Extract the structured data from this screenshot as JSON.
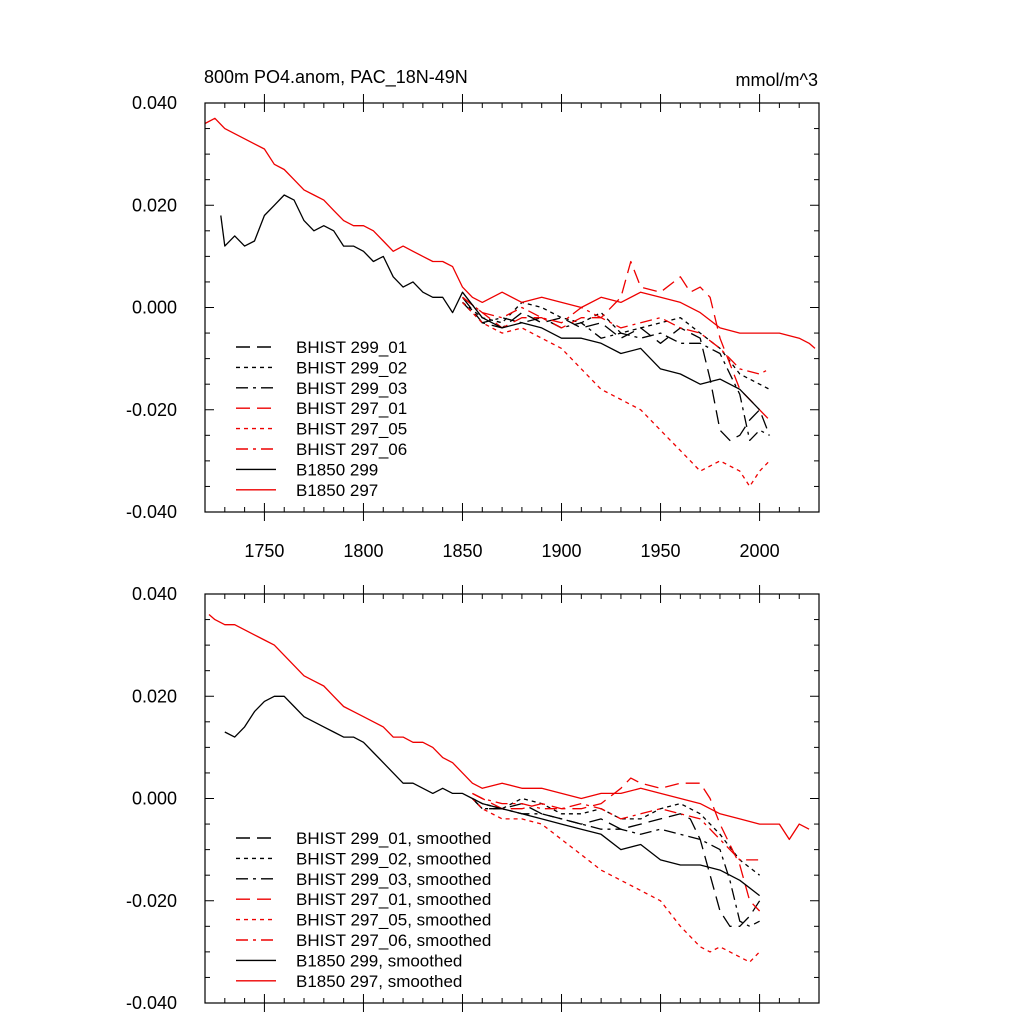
{
  "chart_data": [
    {
      "type": "line",
      "title": "800m PO4.anom, PAC_18N-49N",
      "units": "mmol/m^3",
      "xlim": [
        1720,
        2030
      ],
      "ylim": [
        -0.04,
        0.04
      ],
      "x_ticks": [
        1750,
        1800,
        1850,
        1900,
        1950,
        2000
      ],
      "y_ticks": [
        -0.04,
        -0.02,
        0.0,
        0.02,
        0.04
      ],
      "x_tick_labels": [
        "1750",
        "1800",
        "1850",
        "1900",
        "1950",
        "2000"
      ],
      "y_tick_labels": [
        "-0.040",
        "-0.020",
        "0.000",
        "0.020",
        "0.040"
      ],
      "legend_position": "bottom-left",
      "series": [
        {
          "name": "BHIST 299_01",
          "color": "#000000",
          "dash": "long-dash",
          "x": [
            1850,
            1860,
            1870,
            1880,
            1890,
            1900,
            1910,
            1920,
            1930,
            1940,
            1950,
            1960,
            1970,
            1975,
            1980,
            1985,
            1990,
            1995,
            2000,
            2005
          ],
          "y": [
            0.002,
            -0.003,
            -0.004,
            -0.001,
            -0.003,
            -0.002,
            -0.004,
            -0.003,
            -0.006,
            -0.004,
            -0.007,
            -0.004,
            -0.006,
            -0.014,
            -0.024,
            -0.026,
            -0.025,
            -0.022,
            -0.02,
            -0.025
          ]
        },
        {
          "name": "BHIST 299_02",
          "color": "#000000",
          "dash": "short-dash",
          "x": [
            1850,
            1860,
            1870,
            1880,
            1890,
            1900,
            1910,
            1920,
            1930,
            1940,
            1950,
            1960,
            1970,
            1980,
            1990,
            2000,
            2005
          ],
          "y": [
            0.001,
            -0.002,
            -0.003,
            0.001,
            0.0,
            -0.002,
            -0.003,
            -0.001,
            -0.005,
            -0.004,
            -0.003,
            -0.002,
            -0.005,
            -0.008,
            -0.013,
            -0.015,
            -0.016
          ]
        },
        {
          "name": "BHIST 299_03",
          "color": "#000000",
          "dash": "dash-dot",
          "x": [
            1850,
            1860,
            1870,
            1880,
            1890,
            1900,
            1910,
            1920,
            1930,
            1940,
            1950,
            1960,
            1970,
            1980,
            1990,
            1995,
            2000,
            2005
          ],
          "y": [
            0.001,
            -0.003,
            -0.002,
            -0.003,
            -0.002,
            -0.004,
            -0.003,
            -0.006,
            -0.005,
            -0.006,
            -0.005,
            -0.007,
            -0.007,
            -0.009,
            -0.017,
            -0.026,
            -0.024,
            -0.025
          ]
        },
        {
          "name": "BHIST 297_01",
          "color": "#ee0000",
          "dash": "long-dash",
          "x": [
            1850,
            1860,
            1870,
            1880,
            1890,
            1900,
            1910,
            1920,
            1930,
            1935,
            1940,
            1950,
            1960,
            1965,
            1970,
            1975,
            1980,
            1990,
            2000,
            2005
          ],
          "y": [
            0.002,
            -0.001,
            -0.004,
            -0.002,
            -0.002,
            -0.004,
            -0.002,
            -0.002,
            0.002,
            0.009,
            0.004,
            0.003,
            0.006,
            0.003,
            0.004,
            0.002,
            -0.006,
            -0.016,
            -0.02,
            -0.022
          ]
        },
        {
          "name": "BHIST 297_05",
          "color": "#ee0000",
          "dash": "short-dash",
          "x": [
            1850,
            1860,
            1870,
            1880,
            1890,
            1900,
            1910,
            1920,
            1930,
            1940,
            1950,
            1960,
            1970,
            1980,
            1990,
            1995,
            2000,
            2005
          ],
          "y": [
            0.001,
            -0.003,
            -0.005,
            -0.004,
            -0.006,
            -0.008,
            -0.012,
            -0.016,
            -0.018,
            -0.02,
            -0.024,
            -0.028,
            -0.032,
            -0.03,
            -0.032,
            -0.035,
            -0.032,
            -0.03
          ]
        },
        {
          "name": "BHIST 297_06",
          "color": "#ee0000",
          "dash": "dash-dot",
          "x": [
            1850,
            1860,
            1870,
            1880,
            1890,
            1900,
            1910,
            1920,
            1930,
            1940,
            1950,
            1960,
            1970,
            1980,
            1990,
            2000,
            2005
          ],
          "y": [
            0.002,
            -0.001,
            -0.002,
            0.0,
            -0.002,
            -0.003,
            0.0,
            -0.002,
            -0.004,
            -0.003,
            -0.002,
            -0.004,
            -0.005,
            -0.008,
            -0.012,
            -0.013,
            -0.012
          ]
        },
        {
          "name": "B1850 299",
          "color": "#000000",
          "dash": "solid",
          "x": [
            1728,
            1730,
            1735,
            1740,
            1745,
            1750,
            1755,
            1760,
            1765,
            1770,
            1775,
            1780,
            1785,
            1790,
            1795,
            1800,
            1805,
            1810,
            1815,
            1820,
            1825,
            1830,
            1835,
            1840,
            1845,
            1850,
            1860,
            1870,
            1880,
            1890,
            1900,
            1910,
            1920,
            1930,
            1940,
            1950,
            1960,
            1970,
            1980,
            1990,
            2000
          ],
          "y": [
            0.018,
            0.012,
            0.014,
            0.012,
            0.013,
            0.018,
            0.02,
            0.022,
            0.021,
            0.017,
            0.015,
            0.016,
            0.015,
            0.012,
            0.012,
            0.011,
            0.009,
            0.01,
            0.006,
            0.004,
            0.005,
            0.003,
            0.002,
            0.002,
            -0.001,
            0.003,
            -0.002,
            -0.004,
            -0.003,
            -0.004,
            -0.006,
            -0.006,
            -0.007,
            -0.009,
            -0.008,
            -0.012,
            -0.013,
            -0.015,
            -0.014,
            -0.016,
            -0.02
          ]
        },
        {
          "name": "B1850 297",
          "color": "#ee0000",
          "dash": "solid",
          "x": [
            1720,
            1725,
            1730,
            1735,
            1740,
            1745,
            1750,
            1755,
            1760,
            1765,
            1770,
            1775,
            1780,
            1785,
            1790,
            1795,
            1800,
            1805,
            1810,
            1815,
            1820,
            1825,
            1830,
            1835,
            1840,
            1845,
            1850,
            1855,
            1860,
            1870,
            1880,
            1890,
            1900,
            1910,
            1920,
            1930,
            1940,
            1950,
            1960,
            1970,
            1980,
            1990,
            2000,
            2010,
            2020,
            2025,
            2028
          ],
          "y": [
            0.036,
            0.037,
            0.035,
            0.034,
            0.033,
            0.032,
            0.031,
            0.028,
            0.027,
            0.025,
            0.023,
            0.022,
            0.021,
            0.019,
            0.017,
            0.016,
            0.016,
            0.015,
            0.013,
            0.011,
            0.012,
            0.011,
            0.01,
            0.009,
            0.009,
            0.008,
            0.004,
            0.002,
            0.001,
            0.003,
            0.001,
            0.002,
            0.001,
            0.0,
            0.002,
            0.001,
            0.003,
            0.002,
            0.001,
            -0.001,
            -0.004,
            -0.005,
            -0.005,
            -0.005,
            -0.006,
            -0.007,
            -0.008
          ]
        }
      ]
    },
    {
      "type": "line",
      "xlim": [
        1720,
        2030
      ],
      "ylim": [
        -0.04,
        0.04
      ],
      "x_ticks": [
        1750,
        1800,
        1850,
        1900,
        1950,
        2000
      ],
      "y_ticks": [
        -0.04,
        -0.02,
        0.0,
        0.02,
        0.04
      ],
      "y_tick_labels": [
        "-0.040",
        "-0.020",
        "0.000",
        "0.020",
        "0.040"
      ],
      "legend_position": "bottom-left",
      "series": [
        {
          "name": "BHIST 299_01, smoothed",
          "color": "#000000",
          "dash": "long-dash",
          "x": [
            1855,
            1860,
            1870,
            1880,
            1890,
            1900,
            1910,
            1920,
            1930,
            1940,
            1950,
            1960,
            1965,
            1970,
            1975,
            1980,
            1985,
            1990,
            1995,
            2000
          ],
          "y": [
            0.0,
            -0.002,
            -0.002,
            -0.001,
            -0.003,
            -0.004,
            -0.005,
            -0.004,
            -0.006,
            -0.005,
            -0.004,
            -0.003,
            -0.004,
            -0.008,
            -0.015,
            -0.022,
            -0.025,
            -0.025,
            -0.023,
            -0.02
          ]
        },
        {
          "name": "BHIST 299_02, smoothed",
          "color": "#000000",
          "dash": "short-dash",
          "x": [
            1855,
            1860,
            1870,
            1880,
            1890,
            1900,
            1910,
            1920,
            1930,
            1940,
            1950,
            1960,
            1970,
            1980,
            1990,
            2000
          ],
          "y": [
            0.0,
            -0.001,
            -0.002,
            0.0,
            -0.001,
            -0.003,
            -0.003,
            -0.002,
            -0.004,
            -0.004,
            -0.002,
            -0.001,
            -0.003,
            -0.007,
            -0.012,
            -0.015
          ]
        },
        {
          "name": "BHIST 299_03, smoothed",
          "color": "#000000",
          "dash": "dash-dot",
          "x": [
            1855,
            1860,
            1870,
            1880,
            1890,
            1900,
            1910,
            1920,
            1930,
            1940,
            1950,
            1960,
            1970,
            1980,
            1985,
            1990,
            1995,
            2000
          ],
          "y": [
            0.0,
            -0.002,
            -0.002,
            -0.003,
            -0.003,
            -0.004,
            -0.005,
            -0.006,
            -0.006,
            -0.007,
            -0.006,
            -0.007,
            -0.008,
            -0.01,
            -0.016,
            -0.024,
            -0.025,
            -0.024
          ]
        },
        {
          "name": "BHIST 297_01, smoothed",
          "color": "#ee0000",
          "dash": "long-dash",
          "x": [
            1855,
            1860,
            1870,
            1880,
            1890,
            1900,
            1910,
            1920,
            1930,
            1935,
            1940,
            1950,
            1960,
            1965,
            1970,
            1975,
            1980,
            1990,
            1995,
            2000
          ],
          "y": [
            0.001,
            0.0,
            -0.002,
            -0.002,
            -0.001,
            -0.002,
            -0.002,
            -0.001,
            0.002,
            0.004,
            0.003,
            0.002,
            0.003,
            0.003,
            0.003,
            0.0,
            -0.005,
            -0.013,
            -0.02,
            -0.022
          ]
        },
        {
          "name": "BHIST 297_05, smoothed",
          "color": "#ee0000",
          "dash": "short-dash",
          "x": [
            1855,
            1860,
            1870,
            1880,
            1890,
            1900,
            1910,
            1920,
            1930,
            1940,
            1950,
            1960,
            1970,
            1975,
            1980,
            1990,
            1995,
            2000
          ],
          "y": [
            0.0,
            -0.002,
            -0.004,
            -0.004,
            -0.005,
            -0.008,
            -0.011,
            -0.014,
            -0.016,
            -0.018,
            -0.02,
            -0.025,
            -0.029,
            -0.03,
            -0.029,
            -0.031,
            -0.032,
            -0.03
          ]
        },
        {
          "name": "BHIST 297_06, smoothed",
          "color": "#ee0000",
          "dash": "dash-dot",
          "x": [
            1855,
            1860,
            1870,
            1880,
            1890,
            1900,
            1910,
            1920,
            1930,
            1940,
            1950,
            1960,
            1970,
            1980,
            1990,
            2000
          ],
          "y": [
            0.001,
            0.0,
            -0.001,
            -0.001,
            -0.002,
            -0.002,
            -0.001,
            -0.002,
            -0.004,
            -0.003,
            -0.002,
            -0.003,
            -0.004,
            -0.008,
            -0.012,
            -0.012
          ]
        },
        {
          "name": "B1850 299, smoothed",
          "color": "#000000",
          "dash": "solid",
          "x": [
            1730,
            1735,
            1740,
            1745,
            1750,
            1755,
            1760,
            1765,
            1770,
            1775,
            1780,
            1785,
            1790,
            1795,
            1800,
            1805,
            1810,
            1815,
            1820,
            1825,
            1830,
            1835,
            1840,
            1845,
            1850,
            1855,
            1860,
            1870,
            1880,
            1890,
            1900,
            1910,
            1920,
            1930,
            1940,
            1950,
            1960,
            1970,
            1980,
            1990,
            2000
          ],
          "y": [
            0.013,
            0.012,
            0.014,
            0.017,
            0.019,
            0.02,
            0.02,
            0.018,
            0.016,
            0.015,
            0.014,
            0.013,
            0.012,
            0.012,
            0.011,
            0.009,
            0.007,
            0.005,
            0.003,
            0.003,
            0.002,
            0.001,
            0.002,
            0.001,
            0.001,
            0.0,
            -0.001,
            -0.002,
            -0.003,
            -0.004,
            -0.005,
            -0.006,
            -0.007,
            -0.01,
            -0.009,
            -0.012,
            -0.013,
            -0.013,
            -0.014,
            -0.016,
            -0.019
          ]
        },
        {
          "name": "B1850 297, smoothed",
          "color": "#ee0000",
          "dash": "solid",
          "x": [
            1722,
            1725,
            1730,
            1735,
            1740,
            1745,
            1750,
            1755,
            1760,
            1765,
            1770,
            1775,
            1780,
            1785,
            1790,
            1795,
            1800,
            1805,
            1810,
            1815,
            1820,
            1825,
            1830,
            1835,
            1840,
            1845,
            1850,
            1855,
            1860,
            1870,
            1880,
            1890,
            1900,
            1910,
            1920,
            1930,
            1940,
            1950,
            1960,
            1970,
            1980,
            1990,
            2000,
            2010,
            2015,
            2020,
            2025
          ],
          "y": [
            0.036,
            0.035,
            0.034,
            0.034,
            0.033,
            0.032,
            0.031,
            0.03,
            0.028,
            0.026,
            0.024,
            0.023,
            0.022,
            0.02,
            0.018,
            0.017,
            0.016,
            0.015,
            0.014,
            0.012,
            0.012,
            0.011,
            0.011,
            0.01,
            0.008,
            0.007,
            0.005,
            0.003,
            0.002,
            0.003,
            0.002,
            0.002,
            0.001,
            0.0,
            0.001,
            0.001,
            0.002,
            0.001,
            0.0,
            -0.001,
            -0.003,
            -0.004,
            -0.005,
            -0.005,
            -0.008,
            -0.005,
            -0.006
          ]
        }
      ]
    }
  ]
}
